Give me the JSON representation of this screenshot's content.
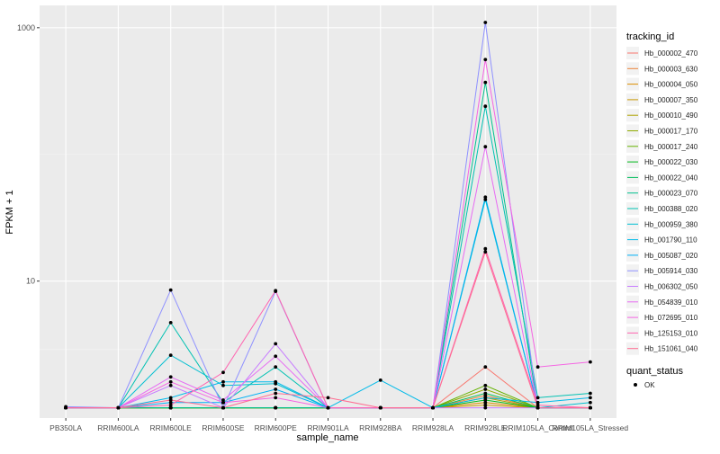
{
  "chart_data": {
    "type": "line",
    "xlabel": "sample_name",
    "ylabel": "FPKM + 1",
    "y_scale": "log10",
    "ylim": [
      0.83,
      1500
    ],
    "y_ticks": [
      10,
      1000
    ],
    "grid": true,
    "background": "#ebebeb",
    "categories": [
      "PB350LA",
      "RRIM600LA",
      "RRIM600LE",
      "RRIM600SE",
      "RRIM600PE",
      "RRIM901LA",
      "RRIM928BA",
      "RRIM928LA",
      "RRIM928LE",
      "RRIM105LA_Control",
      "RRIM105LA_Stressed"
    ],
    "legend": {
      "title": "tracking_id",
      "position": "right",
      "shape_title": "quant_status",
      "shape_label": "OK"
    },
    "series": [
      {
        "name": "Hb_000002_470",
        "color": "#F8766D",
        "values": [
          1,
          1,
          1,
          1,
          1,
          1,
          1,
          1,
          2.1,
          1,
          1
        ]
      },
      {
        "name": "Hb_000003_630",
        "color": "#EC8239",
        "values": [
          1,
          1,
          1,
          1,
          1,
          1,
          1,
          1,
          1.25,
          1,
          1
        ]
      },
      {
        "name": "Hb_000004_050",
        "color": "#DB8E00",
        "values": [
          1,
          1,
          1,
          1,
          1,
          1,
          1,
          1,
          1.1,
          1,
          1
        ]
      },
      {
        "name": "Hb_000007_350",
        "color": "#C79800",
        "values": [
          1,
          1,
          1,
          1,
          1,
          1,
          1,
          1,
          1.05,
          1,
          1
        ]
      },
      {
        "name": "Hb_000010_490",
        "color": "#AEA200",
        "values": [
          1,
          1,
          1,
          1,
          1,
          1,
          1,
          1,
          1.2,
          1,
          1
        ]
      },
      {
        "name": "Hb_000017_170",
        "color": "#8FAA00",
        "values": [
          1,
          1,
          1,
          1,
          1,
          1,
          1,
          1,
          1.4,
          1,
          1
        ]
      },
      {
        "name": "Hb_000017_240",
        "color": "#64B200",
        "values": [
          1,
          1,
          1,
          1,
          1,
          1,
          1,
          1,
          1.5,
          1,
          1
        ]
      },
      {
        "name": "Hb_000022_030",
        "color": "#00B81B",
        "values": [
          1,
          1,
          1,
          1,
          1,
          1,
          1,
          1,
          1.15,
          1,
          1
        ]
      },
      {
        "name": "Hb_000022_040",
        "color": "#00BD5C",
        "values": [
          1,
          1,
          1,
          1,
          1,
          1,
          1,
          1,
          1.3,
          1,
          1
        ]
      },
      {
        "name": "Hb_000023_070",
        "color": "#00C08E",
        "values": [
          1,
          1,
          1,
          1,
          1,
          1,
          1,
          1,
          370,
          1,
          1
        ]
      },
      {
        "name": "Hb_000388_020",
        "color": "#00C1B2",
        "values": [
          1,
          1,
          4.7,
          1.1,
          2.1,
          1,
          1,
          1,
          240,
          1.2,
          1.3
        ]
      },
      {
        "name": "Hb_000959_380",
        "color": "#00BFD1",
        "values": [
          1,
          1,
          2.6,
          1.5,
          1.55,
          1,
          1,
          1,
          44,
          1,
          1.1
        ]
      },
      {
        "name": "Hb_001790_110",
        "color": "#00BAE9",
        "values": [
          1,
          1,
          1.2,
          1.6,
          1.6,
          1,
          1.65,
          1,
          1.2,
          1.1,
          1.2
        ]
      },
      {
        "name": "Hb_005087_020",
        "color": "#00B0F6",
        "values": [
          1,
          1,
          1.1,
          1.1,
          1.4,
          1,
          1,
          1,
          46,
          1,
          1
        ]
      },
      {
        "name": "Hb_005914_030",
        "color": "#8F91FF",
        "values": [
          1.02,
          1,
          8.5,
          1,
          8.3,
          1,
          1,
          1,
          1100,
          1,
          1
        ]
      },
      {
        "name": "Hb_006302_050",
        "color": "#C77CFF",
        "values": [
          1,
          1,
          1.5,
          1,
          3.2,
          1,
          1,
          1,
          1,
          1,
          1
        ]
      },
      {
        "name": "Hb_054839_010",
        "color": "#E76BF3",
        "values": [
          1,
          1,
          1.75,
          1.15,
          2.55,
          1,
          1,
          1,
          115,
          1,
          1
        ]
      },
      {
        "name": "Hb_072695_010",
        "color": "#F564E3",
        "values": [
          1,
          1,
          1.6,
          1.1,
          1.2,
          1,
          1,
          1,
          560,
          2.1,
          2.3
        ]
      },
      {
        "name": "Hb_125153_010",
        "color": "#FF64B0",
        "values": [
          1,
          1,
          1.05,
          1.9,
          8.4,
          1,
          1,
          1,
          18,
          1.05,
          1
        ]
      },
      {
        "name": "Hb_151061_040",
        "color": "#FF6C91",
        "values": [
          1,
          1,
          1.15,
          1,
          1.3,
          1.2,
          1,
          1,
          17,
          1,
          1
        ]
      }
    ]
  }
}
